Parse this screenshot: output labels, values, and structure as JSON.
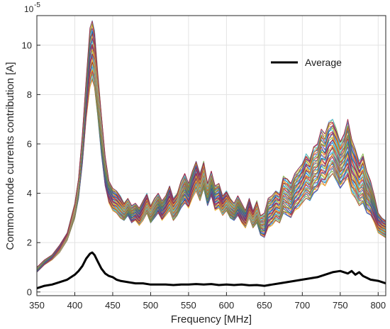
{
  "chart_data": {
    "type": "line",
    "xlabel": "Frequency [MHz]",
    "ylabel": "Common mode currents contribution [A]",
    "y_exponent_label": "10",
    "y_exponent_power": "-5",
    "xlim": [
      350,
      810
    ],
    "ylim": [
      -0.15,
      11.2
    ],
    "x_ticks": [
      350,
      400,
      450,
      500,
      550,
      600,
      650,
      700,
      750,
      800
    ],
    "y_ticks": [
      0,
      2,
      4,
      6,
      8,
      10
    ],
    "grid": true,
    "legend_position": "top-right",
    "legend_entries": [
      "Average"
    ],
    "ensemble_colors": [
      "#0072BD",
      "#D95319",
      "#EDB120",
      "#7E2F8E",
      "#77AC30",
      "#4DBEEE",
      "#A2142F"
    ],
    "ensemble_envelope": {
      "x": [
        350,
        360,
        370,
        380,
        390,
        400,
        405,
        410,
        415,
        420,
        423,
        426,
        430,
        435,
        440,
        445,
        450,
        455,
        460,
        465,
        470,
        475,
        480,
        485,
        490,
        495,
        500,
        505,
        510,
        515,
        520,
        525,
        530,
        535,
        540,
        545,
        550,
        555,
        560,
        565,
        570,
        575,
        580,
        585,
        590,
        595,
        600,
        605,
        610,
        615,
        620,
        625,
        630,
        635,
        640,
        645,
        650,
        655,
        660,
        665,
        670,
        675,
        680,
        685,
        690,
        695,
        700,
        705,
        710,
        715,
        720,
        725,
        730,
        735,
        740,
        745,
        750,
        755,
        760,
        765,
        770,
        775,
        780,
        785,
        790,
        795,
        800,
        805,
        810
      ],
      "low": [
        0.8,
        1.1,
        1.3,
        1.6,
        2.1,
        3.0,
        3.8,
        5.2,
        7.0,
        8.3,
        8.6,
        8.3,
        7.2,
        5.6,
        4.3,
        3.6,
        3.3,
        3.2,
        3.0,
        2.9,
        3.1,
        2.8,
        2.9,
        2.7,
        2.9,
        3.2,
        2.8,
        3.0,
        3.2,
        2.9,
        3.1,
        3.3,
        2.9,
        3.1,
        3.4,
        3.6,
        3.4,
        3.8,
        4.1,
        3.7,
        4.2,
        3.5,
        3.9,
        3.3,
        3.4,
        3.1,
        3.3,
        3.0,
        2.9,
        3.1,
        2.8,
        2.6,
        3.0,
        2.6,
        2.8,
        2.3,
        2.2,
        2.6,
        2.7,
        2.9,
        2.8,
        3.2,
        3.1,
        3.0,
        3.3,
        3.4,
        3.6,
        3.8,
        3.7,
        4.0,
        4.1,
        4.4,
        4.3,
        4.6,
        4.8,
        4.5,
        4.2,
        4.4,
        4.6,
        4.0,
        3.8,
        3.5,
        3.6,
        3.2,
        3.1,
        2.8,
        2.4,
        2.3,
        2.2
      ],
      "high": [
        1.0,
        1.3,
        1.5,
        1.9,
        2.4,
        3.6,
        4.6,
        6.4,
        8.6,
        10.7,
        11.0,
        10.6,
        9.0,
        7.2,
        5.5,
        4.5,
        4.2,
        4.1,
        3.9,
        3.6,
        3.8,
        3.5,
        3.6,
        3.4,
        3.7,
        4.0,
        3.5,
        3.8,
        4.0,
        3.7,
        3.9,
        4.3,
        3.8,
        4.0,
        4.5,
        4.8,
        4.4,
        4.9,
        5.3,
        4.8,
        5.3,
        4.4,
        4.9,
        4.3,
        4.4,
        3.9,
        4.1,
        3.8,
        3.6,
        3.9,
        3.6,
        3.3,
        3.8,
        3.3,
        3.7,
        3.1,
        3.2,
        3.8,
        3.9,
        4.1,
        4.0,
        4.7,
        4.6,
        4.4,
        4.8,
        5.0,
        5.2,
        5.6,
        5.4,
        5.9,
        6.0,
        6.6,
        6.4,
        6.9,
        7.0,
        6.6,
        6.1,
        6.4,
        7.0,
        6.2,
        5.8,
        5.3,
        5.6,
        4.9,
        4.5,
        3.9,
        3.2,
        3.0,
        2.9
      ]
    },
    "series": [
      {
        "name": "Average",
        "color": "#000000",
        "x": [
          350,
          360,
          370,
          380,
          390,
          400,
          405,
          410,
          415,
          420,
          423,
          426,
          430,
          435,
          440,
          445,
          450,
          455,
          460,
          470,
          480,
          490,
          500,
          510,
          520,
          530,
          540,
          550,
          560,
          570,
          580,
          590,
          600,
          610,
          620,
          630,
          640,
          650,
          660,
          670,
          680,
          690,
          700,
          710,
          720,
          730,
          740,
          750,
          760,
          765,
          770,
          775,
          780,
          790,
          800,
          810
        ],
        "y": [
          0.15,
          0.25,
          0.3,
          0.4,
          0.5,
          0.7,
          0.85,
          1.05,
          1.35,
          1.55,
          1.6,
          1.5,
          1.25,
          0.95,
          0.75,
          0.65,
          0.6,
          0.5,
          0.45,
          0.4,
          0.35,
          0.35,
          0.3,
          0.3,
          0.3,
          0.28,
          0.3,
          0.3,
          0.32,
          0.3,
          0.32,
          0.28,
          0.3,
          0.28,
          0.3,
          0.27,
          0.28,
          0.25,
          0.3,
          0.35,
          0.4,
          0.45,
          0.5,
          0.55,
          0.6,
          0.7,
          0.8,
          0.85,
          0.75,
          0.85,
          0.7,
          0.8,
          0.65,
          0.5,
          0.45,
          0.35
        ]
      }
    ]
  }
}
